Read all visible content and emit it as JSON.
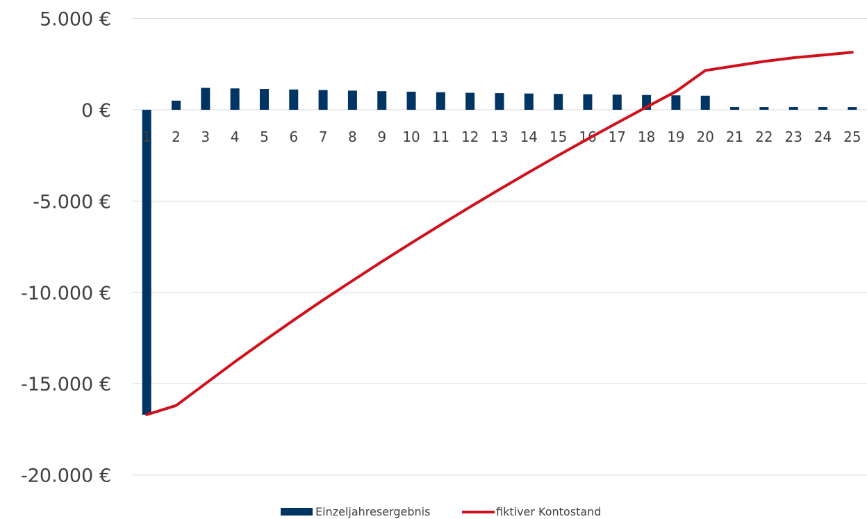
{
  "chart_data": {
    "type": "bar",
    "title": "",
    "xlabel": "",
    "ylabel": "",
    "categories": [
      "1",
      "2",
      "3",
      "4",
      "5",
      "6",
      "7",
      "8",
      "9",
      "10",
      "11",
      "12",
      "13",
      "14",
      "15",
      "16",
      "17",
      "18",
      "19",
      "20",
      "21",
      "22",
      "23",
      "24",
      "25"
    ],
    "ylim": [
      -20000,
      5000
    ],
    "yticks": [
      5000,
      0,
      -5000,
      -10000,
      -15000,
      -20000
    ],
    "ytick_labels": [
      "5.000 €",
      "0 €",
      "-5.000 €",
      "-10.000 €",
      "-15.000 €",
      "-20.000 €"
    ],
    "grid": true,
    "legend_position": "bottom",
    "series": [
      {
        "name": "Einzeljahresergebnis",
        "type": "bar",
        "color": "#003462",
        "values": [
          -16700,
          500,
          1200,
          1170,
          1140,
          1110,
          1080,
          1050,
          1020,
          990,
          960,
          930,
          910,
          890,
          870,
          850,
          830,
          810,
          790,
          770,
          150,
          150,
          150,
          150,
          150
        ]
      },
      {
        "name": "fiktiver Kontostand",
        "type": "line",
        "color": "#d0101b",
        "values": [
          -16700,
          -16200,
          -15000,
          -13800,
          -12650,
          -11520,
          -10420,
          -9360,
          -8320,
          -7300,
          -6300,
          -5320,
          -4360,
          -3420,
          -2500,
          -1600,
          -720,
          150,
          1000,
          2150,
          2400,
          2650,
          2850,
          3000,
          3150
        ]
      }
    ]
  }
}
